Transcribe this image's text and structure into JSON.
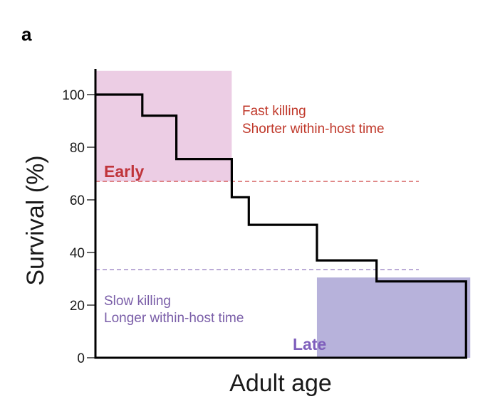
{
  "panel_label": "a",
  "chart_data": {
    "type": "line",
    "step": true,
    "xlabel": "Adult age",
    "ylabel": "Survival (%)",
    "ylim": [
      0,
      110
    ],
    "yticks": [
      0,
      20,
      40,
      60,
      80,
      100
    ],
    "x_tick_labels": false,
    "series": [
      {
        "color": "#000000",
        "x": [
          0,
          0.11,
          0.11,
          0.19,
          0.19,
          0.32,
          0.32,
          0.36,
          0.36,
          0.52,
          0.52,
          0.66,
          0.66,
          0.87,
          0.87
        ],
        "y": [
          100,
          100,
          92,
          92,
          75.5,
          75.5,
          61,
          61,
          50.5,
          50.5,
          37,
          37,
          29,
          29,
          0
        ]
      }
    ],
    "regions": [
      {
        "label": "Early",
        "x": [
          0,
          0.32
        ],
        "y": [
          67,
          109
        ],
        "color": "#eccde4"
      },
      {
        "label": "Late",
        "x": [
          0.52,
          0.88
        ],
        "y": [
          0,
          30.5
        ],
        "color": "#b7b2db"
      }
    ],
    "thresholds": [
      {
        "y": 67,
        "color": "#d45a5a",
        "style": "dashed"
      },
      {
        "y": 33.5,
        "color": "#9a84c4",
        "style": "dashed"
      }
    ],
    "annotations": [
      {
        "lines": [
          "Fast killing",
          "Shorter within-host time"
        ],
        "color": "#c0392b"
      },
      {
        "lines": [
          "Slow killing",
          "Longer within-host time"
        ],
        "color": "#7a5ea8"
      }
    ]
  }
}
